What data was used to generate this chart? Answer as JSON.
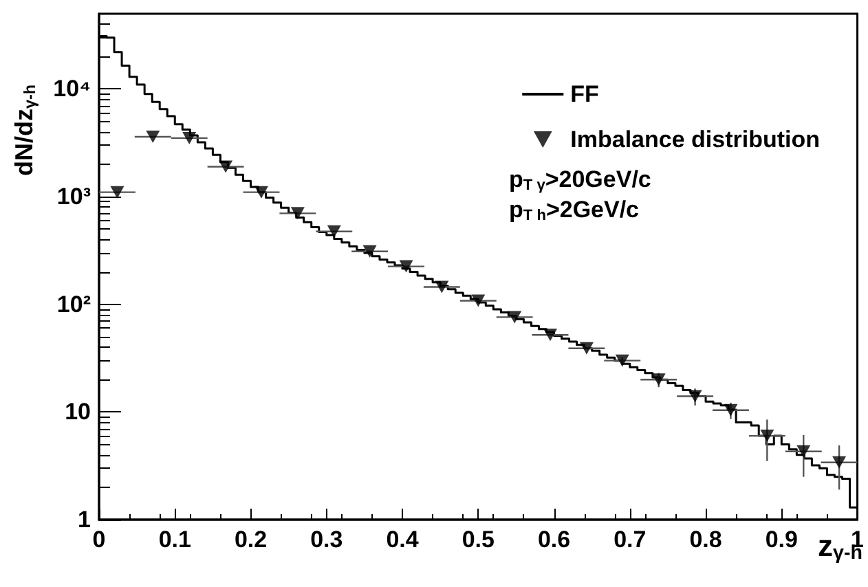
{
  "chart_data": {
    "type": "histogram",
    "xlabel": "z$_{γ-h}$",
    "ylabel": "dN/dz$_{γ-h}$",
    "annotations": [
      "p$_{T γ}$>20GeV/c",
      "p$_{T h}$>2GeV/c"
    ],
    "xlim": [
      0,
      1
    ],
    "xticks": [
      0,
      0.1,
      0.2,
      0.3,
      0.4,
      0.5,
      0.6,
      0.7,
      0.8,
      0.9,
      1
    ],
    "ylim": [
      1,
      50000
    ],
    "yticks": [
      1,
      10,
      {
        "value": 100,
        "label": "10²"
      },
      {
        "value": 1000,
        "label": "10³"
      },
      {
        "value": 10000,
        "label": "10⁴"
      }
    ],
    "log": "y",
    "grid": false,
    "legend": "top right",
    "series": [
      {
        "name": "FF",
        "color": "#000000",
        "bins": [
          0,
          0.01,
          0.02,
          0.03,
          0.04,
          0.05,
          0.06,
          0.07,
          0.08,
          0.09,
          0.1,
          0.11,
          0.12,
          0.13,
          0.14,
          0.15,
          0.16,
          0.17,
          0.18,
          0.19,
          0.2,
          0.21,
          0.22,
          0.23,
          0.24,
          0.25,
          0.26,
          0.27,
          0.28,
          0.29,
          0.3,
          0.31,
          0.32,
          0.33,
          0.34,
          0.35,
          0.36,
          0.37,
          0.38,
          0.39,
          0.4,
          0.41,
          0.42,
          0.43,
          0.44,
          0.45,
          0.46,
          0.47,
          0.48,
          0.49,
          0.5,
          0.51,
          0.52,
          0.53,
          0.54,
          0.55,
          0.56,
          0.57,
          0.58,
          0.59,
          0.6,
          0.61,
          0.62,
          0.63,
          0.64,
          0.65,
          0.66,
          0.67,
          0.68,
          0.69,
          0.7,
          0.71,
          0.72,
          0.73,
          0.74,
          0.75,
          0.76,
          0.77,
          0.78,
          0.79,
          0.8,
          0.81,
          0.82,
          0.83,
          0.84,
          0.85,
          0.86,
          0.87,
          0.88,
          0.89,
          0.9,
          0.91,
          0.92,
          0.93,
          0.94,
          0.95,
          0.96,
          0.97,
          0.98,
          0.99,
          1
        ],
        "values": [
          31000,
          30000,
          22000,
          16500,
          13000,
          11000,
          9000,
          7600,
          6500,
          5600,
          4700,
          4200,
          3700,
          3200,
          2800,
          2450,
          2100,
          1850,
          1600,
          1400,
          1230,
          1100,
          980,
          880,
          790,
          710,
          640,
          580,
          520,
          470,
          440,
          405,
          375,
          345,
          320,
          300,
          280,
          260,
          245,
          230,
          215,
          200,
          185,
          172,
          160,
          148,
          138,
          128,
          120,
          112,
          104,
          97,
          90,
          84,
          78,
          73,
          68,
          63,
          59,
          55,
          51,
          48,
          45,
          42,
          39,
          37,
          34,
          32,
          30,
          28,
          26,
          24.5,
          23,
          21,
          20,
          18.5,
          17.5,
          16,
          15,
          14,
          12.5,
          12,
          11.5,
          10.5,
          8,
          8,
          7.5,
          6,
          5,
          6,
          5,
          4.5,
          4,
          3.7,
          3.2,
          3,
          2.6,
          2.5,
          2.4,
          1.3
        ]
      },
      {
        "type": "scatter",
        "name": "Imbalance distribution",
        "color": "#000000",
        "marker": "triangle",
        "x": [
          0.024,
          0.071,
          0.119,
          0.167,
          0.214,
          0.262,
          0.31,
          0.357,
          0.405,
          0.452,
          0.5,
          0.548,
          0.595,
          0.643,
          0.69,
          0.738,
          0.786,
          0.833,
          0.881,
          0.929,
          0.976
        ],
        "values": [
          1100,
          3600,
          3500,
          1900,
          1100,
          700,
          475,
          310,
          225,
          145,
          108,
          76,
          52,
          39,
          30,
          20,
          14,
          10.4,
          6,
          4.3,
          3.4
        ],
        "errors": [
          null,
          null,
          null,
          null,
          null,
          null,
          null,
          null,
          null,
          null,
          null,
          null,
          null,
          null,
          2,
          3,
          2.5,
          1.8,
          2.5,
          1.8,
          1.5
        ],
        "xerrors": [
          0.024,
          0.024,
          0.024,
          0.024,
          0.024,
          0.024,
          0.024,
          0.024,
          0.024,
          0.024,
          0.024,
          0.024,
          0.024,
          0.024,
          0.024,
          0.024,
          0.024,
          0.024,
          0.024,
          0.024,
          0.024
        ]
      }
    ]
  }
}
